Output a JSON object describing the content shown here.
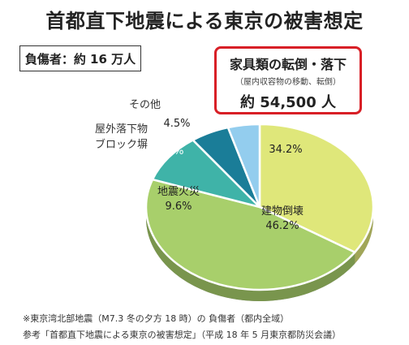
{
  "title": "首都直下地震による東京の被害想定",
  "total_label": "負傷者：約 16 万人",
  "callout": {
    "title": "家具類の転倒・落下",
    "subtitle": "（屋内収容物の移動、転倒）",
    "value": "約 54,500 人"
  },
  "chart_data": {
    "type": "pie",
    "title": "首都直下地震による東京の被害想定",
    "slices": [
      {
        "name": "家具類の転倒・落下",
        "value": 34.2,
        "label": "34.2%",
        "color": "#dfe77a"
      },
      {
        "name": "建物倒壊",
        "value": 46.2,
        "label": "建物倒壊\n46.2%",
        "color": "#a8cf6b"
      },
      {
        "name": "地震火災",
        "value": 9.6,
        "label": "地震火災\n9.6%",
        "color": "#3fb3a8"
      },
      {
        "name": "屋外落下物ブロック塀",
        "value": 5.5,
        "label": "5.5%",
        "color": "#1a7d98"
      },
      {
        "name": "その他",
        "value": 4.5,
        "label": "4.5%",
        "color": "#93cdee"
      }
    ],
    "external_labels": [
      "その他",
      "屋外落下物\nブロック塀"
    ]
  },
  "footnotes": [
    "※東京湾北部地震（M7.3 冬の夕方 18 時）の 負傷者（都内全域）",
    "参考「首都直下地震による東京の被害想定」（平成 18 年 5 月東京都防災会議）"
  ]
}
